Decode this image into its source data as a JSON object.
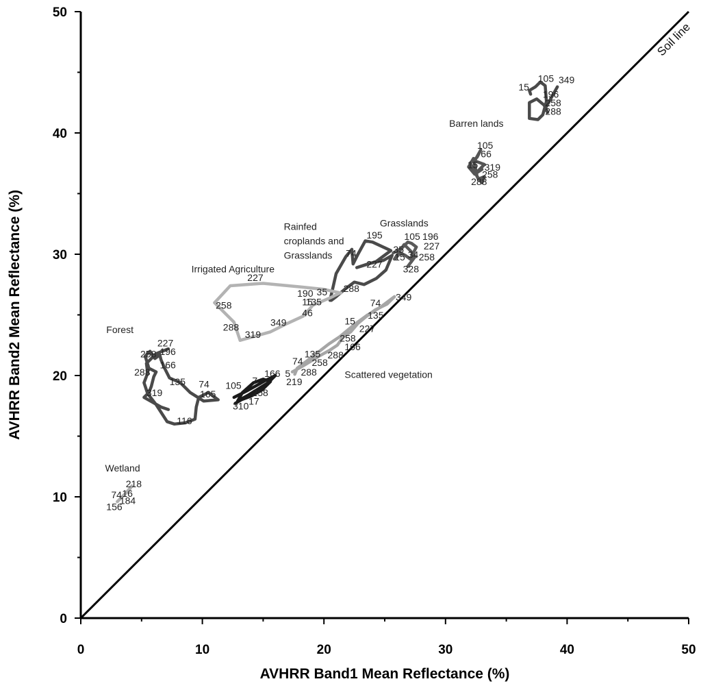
{
  "chart_data": {
    "type": "line",
    "title": "",
    "xlabel": "AVHRR Band1 Mean Reflectance (%)",
    "ylabel": "AVHRR Band2 Mean Reflectance (%)",
    "xlim": [
      0,
      50
    ],
    "ylim": [
      0,
      50
    ],
    "xticks": [
      "0",
      "10",
      "20",
      "30",
      "40",
      "50"
    ],
    "yticks": [
      "0",
      "10",
      "20",
      "30",
      "40",
      "50"
    ],
    "grid": false,
    "legend": "none",
    "reference_line": {
      "label": "Soil line",
      "x": [
        0,
        50
      ],
      "y": [
        0,
        50
      ],
      "color": "#000000"
    },
    "series": [
      {
        "label": "Barren lands",
        "color": "#4a4a4a",
        "x": [
          37.0,
          36.9,
          37.4,
          37.8,
          38.2,
          38.3,
          38.0,
          37.6,
          36.9,
          36.9,
          37.5,
          38.1,
          38.4,
          38.2,
          39.2
        ],
        "y": [
          43.2,
          43.5,
          43.8,
          44.2,
          43.9,
          42.6,
          41.5,
          41.1,
          41.2,
          42.5,
          42.8,
          42.3,
          41.7,
          42.0,
          43.8
        ],
        "labels": [
          {
            "text": "105",
            "x": 37.6,
            "y": 44.2
          },
          {
            "text": "15",
            "x": 36.0,
            "y": 43.5
          },
          {
            "text": "196",
            "x": 38.0,
            "y": 42.9
          },
          {
            "text": "258",
            "x": 38.2,
            "y": 42.2
          },
          {
            "text": "288",
            "x": 38.2,
            "y": 41.5
          },
          {
            "text": "349",
            "x": 39.3,
            "y": 44.1
          }
        ]
      },
      {
        "label": "",
        "color": "#555555",
        "x": [
          32.1,
          32.6,
          32.9,
          32.4,
          33.2,
          32.7,
          33.0,
          32.4,
          31.9,
          32.3,
          32.6,
          33.0,
          33.2,
          32.7,
          32.1
        ],
        "y": [
          37.6,
          38.0,
          38.6,
          37.7,
          37.4,
          36.9,
          37.0,
          36.6,
          37.2,
          37.9,
          36.4,
          35.9,
          36.4,
          36.2,
          37.4
        ],
        "labels": [
          {
            "text": "105",
            "x": 32.6,
            "y": 38.7
          },
          {
            "text": "66",
            "x": 32.9,
            "y": 38.0
          },
          {
            "text": "15",
            "x": 31.8,
            "y": 37.1
          },
          {
            "text": "319",
            "x": 33.2,
            "y": 36.9
          },
          {
            "text": "258",
            "x": 33.0,
            "y": 36.3
          },
          {
            "text": "288",
            "x": 32.1,
            "y": 35.7
          }
        ]
      },
      {
        "label": "Grasslands",
        "color": "#5a5a5a",
        "x": [
          25.7,
          26.4,
          26.9,
          27.2,
          27.6,
          27.1,
          26.7,
          26.3,
          25.8,
          26.6,
          27.1,
          27.5,
          27.2,
          26.9
        ],
        "y": [
          30.1,
          30.5,
          31.0,
          30.9,
          30.6,
          29.6,
          29.9,
          30.1,
          29.6,
          30.8,
          30.3,
          29.8,
          29.4,
          29.0
        ],
        "labels": [
          {
            "text": "105",
            "x": 26.6,
            "y": 31.2
          },
          {
            "text": "196",
            "x": 28.1,
            "y": 31.2
          },
          {
            "text": "227",
            "x": 28.2,
            "y": 30.4
          },
          {
            "text": "34",
            "x": 26.9,
            "y": 29.7
          },
          {
            "text": "15",
            "x": 25.8,
            "y": 29.5
          },
          {
            "text": "258",
            "x": 27.8,
            "y": 29.5
          },
          {
            "text": "328",
            "x": 26.5,
            "y": 28.5
          }
        ]
      },
      {
        "label": "Rainfed croplands and Grasslands",
        "color": "#4a4a4a",
        "x": [
          20.5,
          21.0,
          21.8,
          22.3,
          22.4,
          22.8,
          23.4,
          24.0,
          25.5,
          24.3,
          22.7,
          23.6,
          24.9,
          25.6,
          25.1,
          24.3,
          23.3,
          22.5,
          21.7,
          21.0,
          20.6
        ],
        "y": [
          26.2,
          28.4,
          29.8,
          30.4,
          29.2,
          30.0,
          31.1,
          31.0,
          30.3,
          29.4,
          28.9,
          29.2,
          29.5,
          29.9,
          28.7,
          28.0,
          27.5,
          27.7,
          27.1,
          26.5,
          26.2
        ],
        "labels": [
          {
            "text": "195",
            "x": 23.5,
            "y": 31.3
          },
          {
            "text": "35",
            "x": 25.7,
            "y": 30.1
          },
          {
            "text": "74",
            "x": 21.8,
            "y": 29.8
          },
          {
            "text": "227",
            "x": 23.5,
            "y": 28.9
          },
          {
            "text": "288",
            "x": 21.6,
            "y": 26.9
          },
          {
            "text": "35",
            "x": 19.4,
            "y": 26.6
          },
          {
            "text": "135",
            "x": 18.5,
            "y": 25.8
          }
        ]
      },
      {
        "label": "Irrigated Agriculture",
        "color": "#b3b3b3",
        "x": [
          21.4,
          20.0,
          18.1,
          15.0,
          12.3,
          11.0,
          12.6,
          13.1,
          15.6,
          17.0,
          18.3,
          19.1,
          20.5,
          21.3
        ],
        "y": [
          26.8,
          27.1,
          27.3,
          27.6,
          27.4,
          26.0,
          24.4,
          22.9,
          23.6,
          24.3,
          24.9,
          25.8,
          26.4,
          26.8
        ],
        "labels": [
          {
            "text": "227",
            "x": 13.7,
            "y": 27.8
          },
          {
            "text": "190",
            "x": 17.8,
            "y": 26.5
          },
          {
            "text": "15",
            "x": 18.2,
            "y": 25.8
          },
          {
            "text": "258",
            "x": 11.1,
            "y": 25.5
          },
          {
            "text": "46",
            "x": 18.2,
            "y": 24.9
          },
          {
            "text": "349",
            "x": 15.6,
            "y": 24.1
          },
          {
            "text": "288",
            "x": 11.7,
            "y": 23.7
          },
          {
            "text": "319",
            "x": 13.5,
            "y": 23.1
          }
        ]
      },
      {
        "label": "Forest",
        "color": "#4a4a4a",
        "x": [
          7.2,
          6.2,
          5.4,
          5.5,
          5.2,
          5.5,
          6.2,
          7.1,
          7.7,
          8.6,
          9.4,
          9.5,
          9.7,
          10.5,
          11.3,
          10.1,
          9.0,
          8.2,
          7.3,
          6.9,
          6.6,
          6.5,
          6.1,
          5.7,
          5.3,
          5.6,
          6.2,
          6.0,
          5.8,
          5.6,
          5.2,
          5.9,
          6.6,
          7.2
        ],
        "y": [
          22.2,
          21.8,
          21.0,
          20.2,
          19.4,
          18.5,
          17.6,
          16.2,
          16.0,
          16.1,
          16.4,
          17.4,
          18.2,
          18.6,
          18.0,
          17.9,
          18.6,
          19.4,
          19.8,
          20.6,
          21.3,
          21.7,
          21.4,
          22.0,
          21.6,
          20.6,
          20.3,
          19.9,
          19.1,
          18.6,
          18.2,
          17.8,
          17.4,
          17.2
        ],
        "labels": [
          {
            "text": "227",
            "x": 6.3,
            "y": 22.4
          },
          {
            "text": "196",
            "x": 6.5,
            "y": 21.7
          },
          {
            "text": "258",
            "x": 4.9,
            "y": 21.5
          },
          {
            "text": "166",
            "x": 6.5,
            "y": 20.6
          },
          {
            "text": "288",
            "x": 4.4,
            "y": 20.0
          },
          {
            "text": "135",
            "x": 7.3,
            "y": 19.2
          },
          {
            "text": "74",
            "x": 9.7,
            "y": 19.0
          },
          {
            "text": "319",
            "x": 5.4,
            "y": 18.3
          },
          {
            "text": "165",
            "x": 9.8,
            "y": 18.2
          },
          {
            "text": "116",
            "x": 7.9,
            "y": 16.0
          }
        ]
      },
      {
        "label": "",
        "color": "#1a1a1a",
        "x": [
          12.6,
          13.6,
          14.5,
          15.2,
          16.0,
          15.4,
          14.6,
          13.8,
          12.9,
          13.3,
          14.2,
          15.0,
          15.6,
          14.9,
          14.0,
          13.2,
          12.7
        ],
        "y": [
          18.2,
          18.7,
          19.2,
          19.6,
          20.0,
          19.4,
          18.9,
          18.4,
          17.9,
          18.6,
          19.4,
          19.7,
          19.5,
          18.8,
          18.3,
          18.0,
          17.7
        ],
        "labels": [
          {
            "text": "105",
            "x": 11.9,
            "y": 18.9
          },
          {
            "text": "7",
            "x": 14.1,
            "y": 19.3
          },
          {
            "text": "166",
            "x": 15.1,
            "y": 19.9
          },
          {
            "text": "258",
            "x": 14.1,
            "y": 18.3
          },
          {
            "text": "17",
            "x": 13.8,
            "y": 17.6
          },
          {
            "text": "310",
            "x": 12.5,
            "y": 17.2
          }
        ]
      },
      {
        "label": "Scattered vegetation",
        "color": "#a6a6a6",
        "x": [
          17.4,
          18.3,
          18.8,
          19.6,
          20.5,
          21.1,
          21.6,
          22.2,
          22.8,
          23.4,
          24.2,
          25.2,
          25.8,
          24.6,
          23.6,
          22.5,
          21.3,
          20.4,
          19.5,
          18.6,
          17.8,
          17.6
        ],
        "y": [
          20.3,
          20.8,
          21.1,
          21.6,
          22.1,
          22.5,
          23.2,
          23.6,
          24.3,
          24.8,
          25.4,
          25.9,
          26.5,
          25.6,
          25.0,
          24.2,
          23.2,
          22.6,
          21.9,
          21.2,
          20.6,
          20.1
        ],
        "labels": [
          {
            "text": "349",
            "x": 25.9,
            "y": 26.2
          },
          {
            "text": "74",
            "x": 23.8,
            "y": 25.7
          },
          {
            "text": "135",
            "x": 23.6,
            "y": 24.7
          },
          {
            "text": "15",
            "x": 21.7,
            "y": 24.2
          },
          {
            "text": "227",
            "x": 22.9,
            "y": 23.6
          },
          {
            "text": "258",
            "x": 21.3,
            "y": 22.8
          },
          {
            "text": "166",
            "x": 21.7,
            "y": 22.1
          },
          {
            "text": "288",
            "x": 20.3,
            "y": 21.4
          },
          {
            "text": "135",
            "x": 18.4,
            "y": 21.5
          },
          {
            "text": "74",
            "x": 17.4,
            "y": 20.9
          },
          {
            "text": "258",
            "x": 19.0,
            "y": 20.8
          },
          {
            "text": "288",
            "x": 18.1,
            "y": 20.0
          },
          {
            "text": "5",
            "x": 16.8,
            "y": 19.9
          },
          {
            "text": "219",
            "x": 16.9,
            "y": 19.2
          }
        ]
      },
      {
        "label": "Wetland",
        "color": "#b0b0b0",
        "x": [
          3.0,
          3.3,
          3.6,
          4.0,
          4.2,
          3.8,
          3.4,
          3.1
        ],
        "y": [
          9.6,
          9.9,
          10.2,
          10.6,
          10.9,
          10.4,
          10.0,
          9.7
        ],
        "labels": [
          {
            "text": "218",
            "x": 3.7,
            "y": 10.8
          },
          {
            "text": "74",
            "x": 2.5,
            "y": 9.9
          },
          {
            "text": "16",
            "x": 3.4,
            "y": 10.0
          },
          {
            "text": "184",
            "x": 3.2,
            "y": 9.4
          },
          {
            "text": "156",
            "x": 2.1,
            "y": 8.9
          }
        ]
      }
    ],
    "group_labels": [
      {
        "lines": [
          "Barren lands"
        ],
        "x": 30.3,
        "y": 40.5
      },
      {
        "lines": [
          "Grasslands"
        ],
        "x": 24.6,
        "y": 32.3
      },
      {
        "lines": [
          "Rainfed",
          "croplands and",
          "Grasslands"
        ],
        "x": 16.7,
        "y": 32.0
      },
      {
        "lines": [
          "Irrigated Agriculture"
        ],
        "x": 9.1,
        "y": 28.5
      },
      {
        "lines": [
          "Forest"
        ],
        "x": 2.1,
        "y": 23.5
      },
      {
        "lines": [
          "Scattered vegetation"
        ],
        "x": 21.7,
        "y": 19.8
      },
      {
        "lines": [
          "Wetland"
        ],
        "x": 2.0,
        "y": 12.1
      }
    ]
  }
}
